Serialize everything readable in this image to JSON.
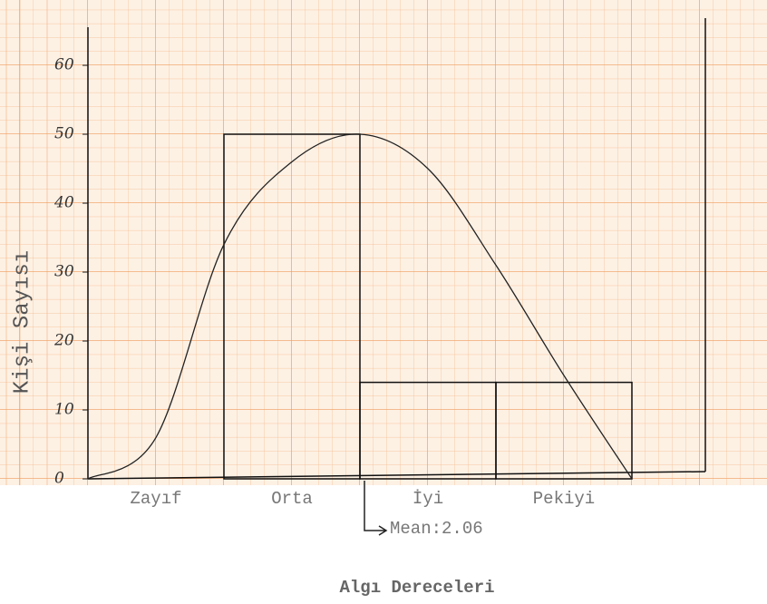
{
  "chart_data": {
    "type": "histogram",
    "title": "Algı Dereceleri",
    "y_label": "Kişi Sayısı",
    "bins": [
      0,
      1,
      2,
      3,
      4
    ],
    "values": [
      0,
      50,
      14,
      14
    ],
    "categories": [
      "Zayıf",
      "Orta",
      "İyi",
      "Pekiyi"
    ],
    "color": "#111111",
    "curve": {
      "x": [
        0,
        0.5,
        1,
        1.5,
        2,
        2.5,
        3,
        3.5,
        4
      ],
      "y": [
        0,
        6,
        34,
        46,
        50,
        45,
        31,
        15,
        0
      ]
    },
    "annotation": "Mean:2.06",
    "xlim": [
      0,
      4.54
    ],
    "ylim": [
      0,
      65
    ],
    "yticks": [
      0,
      10,
      20,
      30,
      40,
      50,
      60
    ],
    "grid": true
  }
}
